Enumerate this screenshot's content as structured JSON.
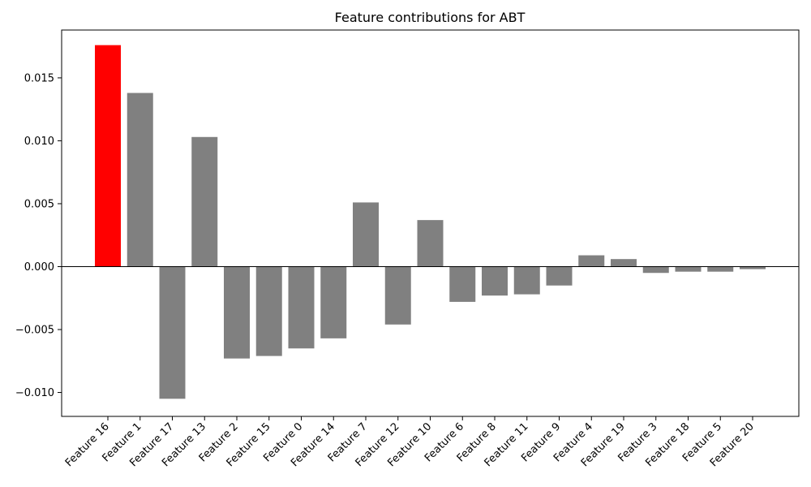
{
  "chart_data": {
    "type": "bar",
    "title": "Feature contributions for ABT",
    "xlabel": "",
    "ylabel": "",
    "categories": [
      "Feature 16",
      "Feature 1",
      "Feature 17",
      "Feature 13",
      "Feature 2",
      "Feature 15",
      "Feature 0",
      "Feature 14",
      "Feature 7",
      "Feature 12",
      "Feature 10",
      "Feature 6",
      "Feature 8",
      "Feature 11",
      "Feature 9",
      "Feature 4",
      "Feature 19",
      "Feature 3",
      "Feature 18",
      "Feature 5",
      "Feature 20"
    ],
    "values": [
      0.0176,
      0.0138,
      -0.0105,
      0.0103,
      -0.0073,
      -0.0071,
      -0.0065,
      -0.0057,
      0.0051,
      -0.0046,
      0.0037,
      -0.0028,
      -0.0023,
      -0.0022,
      -0.0015,
      0.0009,
      0.0006,
      -0.0005,
      -0.0004,
      -0.0004,
      -0.0002
    ],
    "colors": {
      "highlight": "#ff0000",
      "default": "#808080"
    },
    "highlight_index": 0,
    "ylim": [
      -0.0119,
      0.0188
    ],
    "yticks": [
      -0.01,
      -0.005,
      0.0,
      0.005,
      0.01,
      0.015
    ],
    "ytick_labels": [
      "−0.010",
      "−0.005",
      "0.000",
      "0.005",
      "0.010",
      "0.015"
    ],
    "grid": false,
    "legend": "none",
    "zero_line": true
  }
}
